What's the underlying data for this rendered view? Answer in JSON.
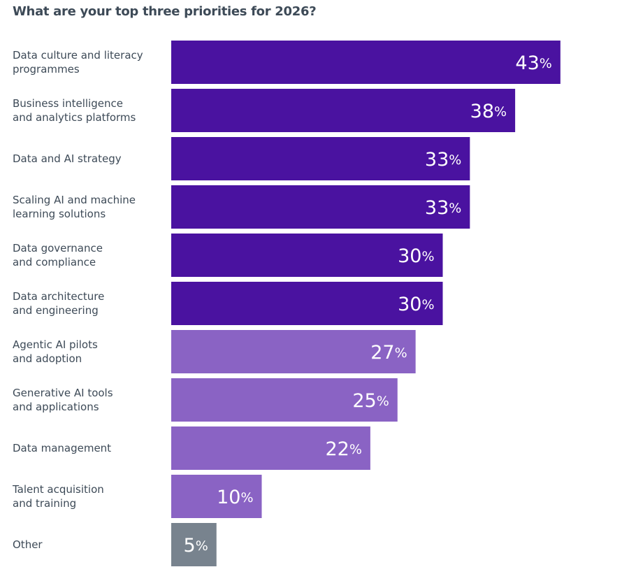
{
  "chart_data": {
    "type": "bar",
    "orientation": "horizontal",
    "title": "What are your top three priorities for 2026?",
    "categories": [
      "Data culture and literacy\nprogrammes",
      "Business intelligence\nand analytics platforms",
      "Data and AI strategy",
      "Scaling AI and machine\nlearning solutions",
      "Data governance\nand compliance",
      "Data architecture\nand engineering",
      "Agentic AI pilots\nand adoption",
      "Generative AI tools\nand applications",
      "Data management",
      "Talent acquisition\nand training",
      "Other"
    ],
    "values": [
      43,
      38,
      33,
      33,
      30,
      30,
      27,
      25,
      22,
      10,
      5
    ],
    "value_labels": [
      "43%",
      "38%",
      "33%",
      "33%",
      "30%",
      "30%",
      "27%",
      "25%",
      "22%",
      "10%",
      "5%"
    ],
    "colors": [
      "#4a12a0",
      "#4a12a0",
      "#4a12a0",
      "#4a12a0",
      "#4a12a0",
      "#4a12a0",
      "#8a63c4",
      "#8a63c4",
      "#8a63c4",
      "#8a63c4",
      "#78838e"
    ]
  }
}
